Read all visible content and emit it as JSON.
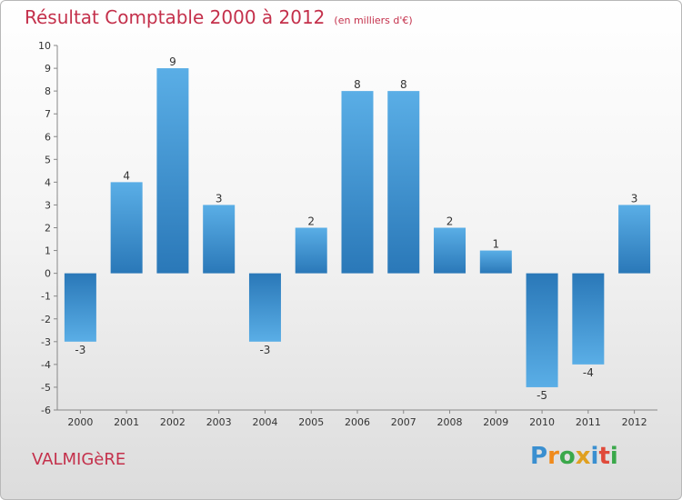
{
  "chart_data": {
    "type": "bar",
    "title": "Résultat Comptable 2000 à 2012",
    "subtitle": "(en milliers d'€)",
    "categories": [
      "2000",
      "2001",
      "2002",
      "2003",
      "2004",
      "2005",
      "2006",
      "2007",
      "2008",
      "2009",
      "2010",
      "2011",
      "2012"
    ],
    "values": [
      -3,
      4,
      9,
      3,
      -3,
      2,
      8,
      8,
      2,
      1,
      -5,
      -4,
      3
    ],
    "ylim": [
      -6,
      10
    ],
    "yticks": [
      -6,
      -5,
      -4,
      -3,
      -2,
      -1,
      0,
      1,
      2,
      3,
      4,
      5,
      6,
      7,
      8,
      9,
      10
    ],
    "xlabel": "",
    "ylabel": "",
    "grid": false,
    "bar_color_dark": "#2a78b8",
    "bar_color_light": "#5aaee6"
  },
  "footer": {
    "commune": "VALMIGèRE",
    "logo_letters": [
      {
        "ch": "P",
        "color": "#3a8fd0"
      },
      {
        "ch": "r",
        "color": "#f08a1c"
      },
      {
        "ch": "o",
        "color": "#3aa84a"
      },
      {
        "ch": "x",
        "color": "#e0a020"
      },
      {
        "ch": "i",
        "color": "#3a8fd0"
      },
      {
        "ch": "t",
        "color": "#e04a3a"
      },
      {
        "ch": "i",
        "color": "#3aa84a"
      }
    ]
  }
}
